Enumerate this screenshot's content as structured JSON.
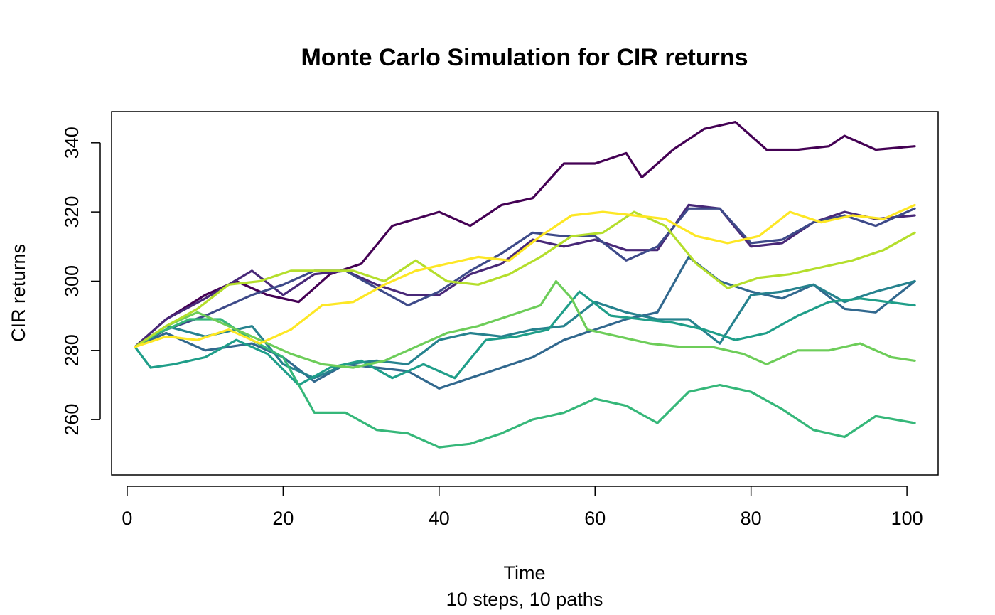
{
  "chart_data": {
    "type": "line",
    "title": "Monte Carlo Simulation for CIR returns",
    "xlabel": "Time",
    "subtitle": "10 steps, 10 paths",
    "ylabel": "CIR returns",
    "xlim": [
      -2,
      104
    ],
    "ylim": [
      244,
      349
    ],
    "xticks": [
      0,
      20,
      40,
      60,
      80,
      100
    ],
    "yticks": [
      260,
      280,
      300,
      320,
      340
    ],
    "grid": false,
    "legend": "none",
    "series": [
      {
        "color": "#440154",
        "points": [
          [
            1,
            281
          ],
          [
            5,
            289
          ],
          [
            10,
            296
          ],
          [
            14,
            300
          ],
          [
            18,
            296
          ],
          [
            22,
            294
          ],
          [
            26,
            302
          ],
          [
            30,
            305
          ],
          [
            34,
            316
          ],
          [
            40,
            320
          ],
          [
            44,
            316
          ],
          [
            48,
            322
          ],
          [
            52,
            324
          ],
          [
            56,
            334
          ],
          [
            60,
            334
          ],
          [
            64,
            337
          ],
          [
            66,
            330
          ],
          [
            70,
            338
          ],
          [
            74,
            344
          ],
          [
            78,
            346
          ],
          [
            82,
            338
          ],
          [
            86,
            338
          ],
          [
            90,
            339
          ],
          [
            92,
            342
          ],
          [
            96,
            338
          ],
          [
            101,
            339
          ]
        ]
      },
      {
        "color": "#482878",
        "points": [
          [
            1,
            281
          ],
          [
            5,
            289
          ],
          [
            10,
            295
          ],
          [
            16,
            303
          ],
          [
            20,
            296
          ],
          [
            24,
            302
          ],
          [
            28,
            303
          ],
          [
            32,
            299
          ],
          [
            36,
            296
          ],
          [
            40,
            296
          ],
          [
            44,
            302
          ],
          [
            48,
            305
          ],
          [
            52,
            312
          ],
          [
            56,
            310
          ],
          [
            60,
            312
          ],
          [
            64,
            309
          ],
          [
            68,
            309
          ],
          [
            72,
            322
          ],
          [
            76,
            321
          ],
          [
            80,
            310
          ],
          [
            84,
            311
          ],
          [
            88,
            317
          ],
          [
            92,
            320
          ],
          [
            96,
            318
          ],
          [
            101,
            319
          ]
        ]
      },
      {
        "color": "#3E4A89",
        "points": [
          [
            1,
            281
          ],
          [
            5,
            286
          ],
          [
            10,
            290
          ],
          [
            16,
            296
          ],
          [
            20,
            299
          ],
          [
            24,
            303
          ],
          [
            28,
            303
          ],
          [
            32,
            298
          ],
          [
            36,
            293
          ],
          [
            40,
            297
          ],
          [
            44,
            303
          ],
          [
            48,
            308
          ],
          [
            52,
            314
          ],
          [
            56,
            313
          ],
          [
            60,
            313
          ],
          [
            64,
            306
          ],
          [
            68,
            310
          ],
          [
            72,
            321
          ],
          [
            76,
            321
          ],
          [
            80,
            311
          ],
          [
            84,
            312
          ],
          [
            88,
            317
          ],
          [
            92,
            319
          ],
          [
            96,
            316
          ],
          [
            101,
            321
          ]
        ]
      },
      {
        "color": "#31688E",
        "points": [
          [
            1,
            281
          ],
          [
            5,
            285
          ],
          [
            10,
            280
          ],
          [
            16,
            282
          ],
          [
            20,
            278
          ],
          [
            24,
            271
          ],
          [
            28,
            276
          ],
          [
            32,
            275
          ],
          [
            36,
            274
          ],
          [
            40,
            269
          ],
          [
            44,
            272
          ],
          [
            48,
            275
          ],
          [
            52,
            278
          ],
          [
            56,
            283
          ],
          [
            60,
            286
          ],
          [
            64,
            289
          ],
          [
            68,
            291
          ],
          [
            72,
            307
          ],
          [
            76,
            300
          ],
          [
            80,
            297
          ],
          [
            84,
            295
          ],
          [
            88,
            299
          ],
          [
            92,
            292
          ],
          [
            96,
            291
          ],
          [
            101,
            300
          ]
        ]
      },
      {
        "color": "#26828E",
        "points": [
          [
            1,
            281
          ],
          [
            5,
            287
          ],
          [
            10,
            284
          ],
          [
            16,
            287
          ],
          [
            20,
            276
          ],
          [
            24,
            272
          ],
          [
            28,
            276
          ],
          [
            32,
            277
          ],
          [
            36,
            276
          ],
          [
            40,
            283
          ],
          [
            44,
            285
          ],
          [
            48,
            284
          ],
          [
            52,
            286
          ],
          [
            56,
            287
          ],
          [
            60,
            294
          ],
          [
            64,
            291
          ],
          [
            68,
            289
          ],
          [
            72,
            289
          ],
          [
            76,
            282
          ],
          [
            80,
            296
          ],
          [
            84,
            297
          ],
          [
            88,
            299
          ],
          [
            92,
            294
          ],
          [
            96,
            297
          ],
          [
            101,
            300
          ]
        ]
      },
      {
        "color": "#1F9E89",
        "points": [
          [
            1,
            281
          ],
          [
            3,
            275
          ],
          [
            6,
            276
          ],
          [
            10,
            278
          ],
          [
            14,
            283
          ],
          [
            18,
            279
          ],
          [
            22,
            270
          ],
          [
            26,
            275
          ],
          [
            30,
            277
          ],
          [
            34,
            272
          ],
          [
            38,
            276
          ],
          [
            42,
            272
          ],
          [
            46,
            283
          ],
          [
            50,
            284
          ],
          [
            54,
            286
          ],
          [
            58,
            297
          ],
          [
            62,
            290
          ],
          [
            66,
            289
          ],
          [
            70,
            288
          ],
          [
            74,
            286
          ],
          [
            78,
            283
          ],
          [
            82,
            285
          ],
          [
            86,
            290
          ],
          [
            90,
            294
          ],
          [
            94,
            295
          ],
          [
            101,
            293
          ]
        ]
      },
      {
        "color": "#35B779",
        "points": [
          [
            1,
            281
          ],
          [
            4,
            285
          ],
          [
            8,
            289
          ],
          [
            12,
            289
          ],
          [
            16,
            283
          ],
          [
            20,
            278
          ],
          [
            24,
            262
          ],
          [
            28,
            262
          ],
          [
            32,
            257
          ],
          [
            36,
            256
          ],
          [
            40,
            252
          ],
          [
            44,
            253
          ],
          [
            48,
            256
          ],
          [
            52,
            260
          ],
          [
            56,
            262
          ],
          [
            60,
            266
          ],
          [
            64,
            264
          ],
          [
            68,
            259
          ],
          [
            72,
            268
          ],
          [
            76,
            270
          ],
          [
            80,
            268
          ],
          [
            84,
            263
          ],
          [
            88,
            257
          ],
          [
            92,
            255
          ],
          [
            96,
            261
          ],
          [
            101,
            259
          ]
        ]
      },
      {
        "color": "#6DCD59",
        "points": [
          [
            1,
            281
          ],
          [
            5,
            287
          ],
          [
            9,
            291
          ],
          [
            13,
            287
          ],
          [
            17,
            283
          ],
          [
            21,
            279
          ],
          [
            25,
            276
          ],
          [
            29,
            275
          ],
          [
            33,
            277
          ],
          [
            37,
            281
          ],
          [
            41,
            285
          ],
          [
            45,
            287
          ],
          [
            49,
            290
          ],
          [
            53,
            293
          ],
          [
            55,
            300
          ],
          [
            57,
            295
          ],
          [
            59,
            286
          ],
          [
            63,
            284
          ],
          [
            67,
            282
          ],
          [
            71,
            281
          ],
          [
            75,
            281
          ],
          [
            79,
            279
          ],
          [
            82,
            276
          ],
          [
            86,
            280
          ],
          [
            90,
            280
          ],
          [
            94,
            282
          ],
          [
            98,
            278
          ],
          [
            101,
            277
          ]
        ]
      },
      {
        "color": "#B4DE2C",
        "points": [
          [
            1,
            281
          ],
          [
            5,
            287
          ],
          [
            9,
            292
          ],
          [
            13,
            299
          ],
          [
            17,
            300
          ],
          [
            21,
            303
          ],
          [
            25,
            303
          ],
          [
            29,
            303
          ],
          [
            33,
            300
          ],
          [
            37,
            306
          ],
          [
            41,
            300
          ],
          [
            45,
            299
          ],
          [
            49,
            302
          ],
          [
            53,
            307
          ],
          [
            57,
            313
          ],
          [
            61,
            314
          ],
          [
            65,
            320
          ],
          [
            69,
            316
          ],
          [
            73,
            305
          ],
          [
            77,
            298
          ],
          [
            81,
            301
          ],
          [
            85,
            302
          ],
          [
            89,
            304
          ],
          [
            93,
            306
          ],
          [
            97,
            309
          ],
          [
            101,
            314
          ]
        ]
      },
      {
        "color": "#FDE725",
        "points": [
          [
            1,
            281
          ],
          [
            5,
            284
          ],
          [
            9,
            283
          ],
          [
            13,
            286
          ],
          [
            17,
            282
          ],
          [
            21,
            286
          ],
          [
            25,
            293
          ],
          [
            29,
            294
          ],
          [
            33,
            299
          ],
          [
            37,
            303
          ],
          [
            41,
            305
          ],
          [
            45,
            307
          ],
          [
            49,
            306
          ],
          [
            53,
            313
          ],
          [
            57,
            319
          ],
          [
            61,
            320
          ],
          [
            65,
            319
          ],
          [
            69,
            318
          ],
          [
            73,
            313
          ],
          [
            77,
            311
          ],
          [
            81,
            313
          ],
          [
            85,
            320
          ],
          [
            89,
            317
          ],
          [
            93,
            319
          ],
          [
            97,
            318
          ],
          [
            101,
            322
          ]
        ]
      }
    ]
  }
}
